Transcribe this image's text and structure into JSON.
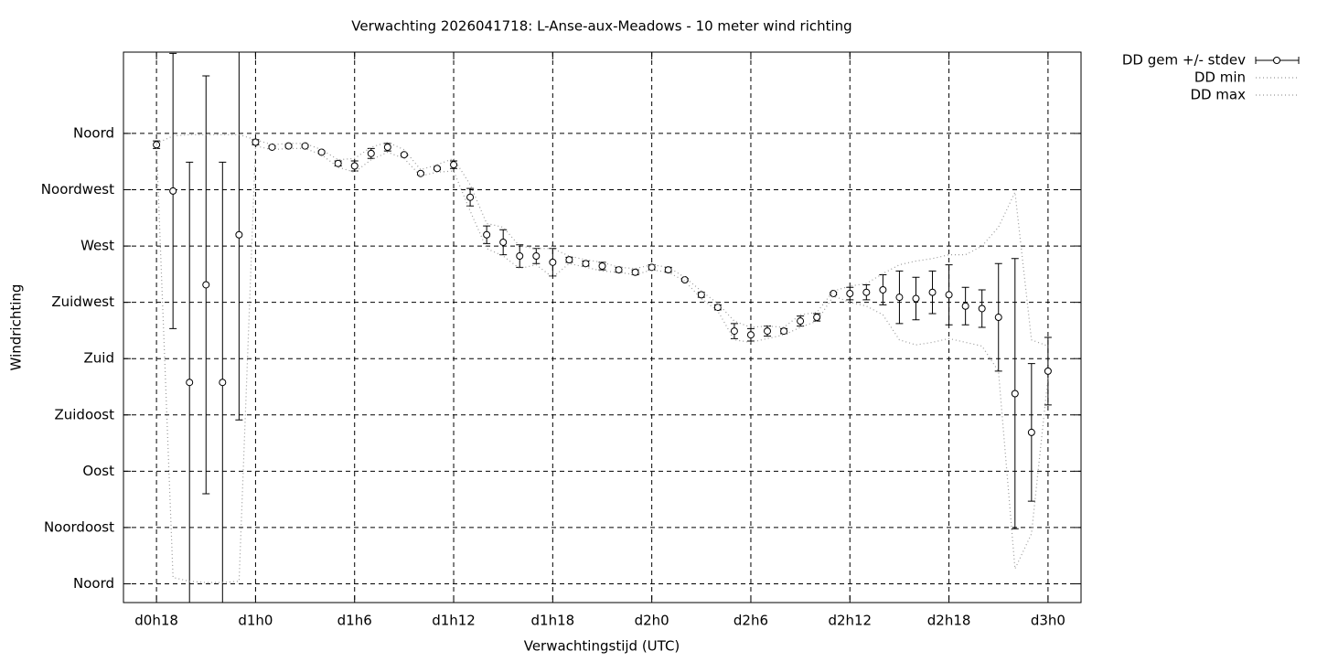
{
  "chart_data": {
    "type": "errorbar",
    "title": "Verwachting 2026041718: L-Anse-aux-Meadows - 10 meter wind richting",
    "x_label": "Verwachtingstijd (UTC)",
    "y_label": "Windrichting",
    "x": [
      18,
      19,
      20,
      21,
      22,
      23,
      24,
      25,
      26,
      27,
      28,
      29,
      30,
      31,
      32,
      33,
      34,
      35,
      36,
      37,
      38,
      39,
      40,
      41,
      42,
      43,
      44,
      45,
      46,
      47,
      48,
      49,
      50,
      51,
      52,
      53,
      54,
      55,
      56,
      57,
      58,
      59,
      60,
      61,
      62,
      63,
      64,
      65,
      66,
      67,
      68,
      69,
      70,
      71,
      72
    ],
    "series": [
      {
        "name": "DD gem +/- stdev",
        "color": "#000000",
        "values": [
          351,
          314,
          161,
          239,
          161,
          279,
          353,
          349,
          350,
          350,
          345,
          336,
          334,
          344,
          349,
          343,
          328,
          332,
          335,
          309,
          279,
          273,
          262,
          262,
          257,
          259,
          256,
          254,
          251,
          249,
          253,
          251,
          243,
          231,
          221,
          202,
          199,
          202,
          202,
          210,
          213,
          232,
          232,
          233,
          235,
          229,
          228,
          233,
          231,
          222,
          220,
          213,
          152,
          121,
          170
        ],
        "errors": [
          3,
          110,
          176,
          167,
          176,
          148,
          2,
          1,
          1,
          1,
          1,
          2,
          4,
          4,
          3,
          1,
          1,
          1,
          3,
          7,
          7,
          10,
          9,
          6,
          11,
          2,
          2,
          3,
          2,
          2,
          2,
          2,
          1,
          2,
          2,
          6,
          5,
          4,
          2,
          4,
          3,
          1,
          5,
          6,
          12,
          21,
          17,
          17,
          24,
          15,
          15,
          43,
          108,
          55,
          27
        ]
      },
      {
        "name": "DD min",
        "color": "#999999",
        "values": [
          351,
          5,
          2,
          1,
          1,
          2,
          350,
          347,
          348,
          348,
          343,
          333,
          329,
          339,
          345,
          340,
          326,
          329,
          330,
          298,
          268,
          262,
          252,
          255,
          245,
          256,
          253,
          250,
          249,
          247,
          251,
          249,
          242,
          228,
          218,
          195,
          193,
          196,
          199,
          205,
          210,
          230,
          225,
          222,
          215,
          195,
          191,
          193,
          196,
          193,
          190,
          170,
          12,
          40,
          165
        ]
      },
      {
        "name": "DD max",
        "color": "#999999",
        "values": [
          352,
          358,
          359,
          359,
          359,
          359,
          355,
          351,
          352,
          352,
          347,
          339,
          340,
          349,
          353,
          347,
          331,
          335,
          340,
          319,
          288,
          285,
          270,
          268,
          268,
          262,
          259,
          257,
          253,
          252,
          255,
          253,
          245,
          234,
          224,
          210,
          205,
          206,
          205,
          215,
          217,
          234,
          238,
          240,
          248,
          255,
          258,
          260,
          263,
          263,
          270,
          285,
          313,
          195,
          190
        ]
      }
    ],
    "xlim": [
      16,
      74
    ],
    "ylim": [
      -15,
      425
    ],
    "xticks": [
      {
        "value": 18,
        "label": "d0h18"
      },
      {
        "value": 24,
        "label": "d1h0"
      },
      {
        "value": 30,
        "label": "d1h6"
      },
      {
        "value": 36,
        "label": "d1h12"
      },
      {
        "value": 42,
        "label": "d1h18"
      },
      {
        "value": 48,
        "label": "d2h0"
      },
      {
        "value": 54,
        "label": "d2h6"
      },
      {
        "value": 60,
        "label": "d2h12"
      },
      {
        "value": 66,
        "label": "d2h18"
      },
      {
        "value": 72,
        "label": "d3h0"
      }
    ],
    "yticks": [
      {
        "value": 0,
        "label": "Noord"
      },
      {
        "value": 45,
        "label": "Noordoost"
      },
      {
        "value": 90,
        "label": "Oost"
      },
      {
        "value": 135,
        "label": "Zuidoost"
      },
      {
        "value": 180,
        "label": "Zuid"
      },
      {
        "value": 225,
        "label": "Zuidwest"
      },
      {
        "value": 270,
        "label": "West"
      },
      {
        "value": 315,
        "label": "Noordwest"
      },
      {
        "value": 360,
        "label": "Noord"
      }
    ],
    "grid": true,
    "legend": "outside-top-right"
  }
}
